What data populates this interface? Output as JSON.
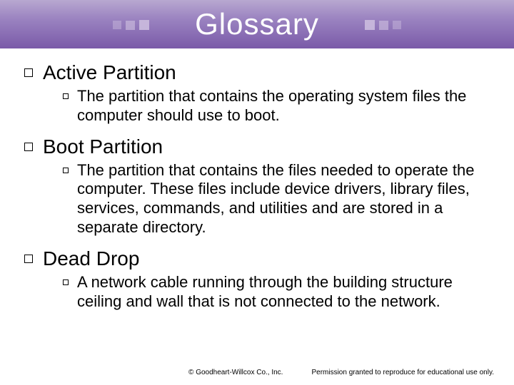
{
  "header": {
    "title": "Glossary",
    "bg_gradient_top": "#b8a8d0",
    "bg_gradient_mid": "#9a82c0",
    "bg_gradient_bottom": "#7a5aa8",
    "title_color": "#ffffff",
    "title_fontsize": 42,
    "square_color": "#c8b8dc"
  },
  "terms": [
    {
      "term": "Active Partition",
      "definition": "The partition that contains the operating system files the computer should use to boot."
    },
    {
      "term": "Boot Partition",
      "definition": "The partition that contains the files needed to operate the computer. These files include device drivers, library files, services, commands, and utilities and are stored in a separate directory."
    },
    {
      "term": "Dead Drop",
      "definition": "A network cable running through the building structure ceiling and wall that is not connected to the network."
    }
  ],
  "footer": {
    "copyright": "© Goodheart-Willcox Co., Inc.",
    "permission": "Permission granted to reproduce for educational use only."
  },
  "styles": {
    "term_fontsize": 28,
    "def_fontsize": 22,
    "footer_fontsize": 10,
    "text_color": "#000000",
    "bullet_border": "#000000",
    "background": "#ffffff"
  }
}
